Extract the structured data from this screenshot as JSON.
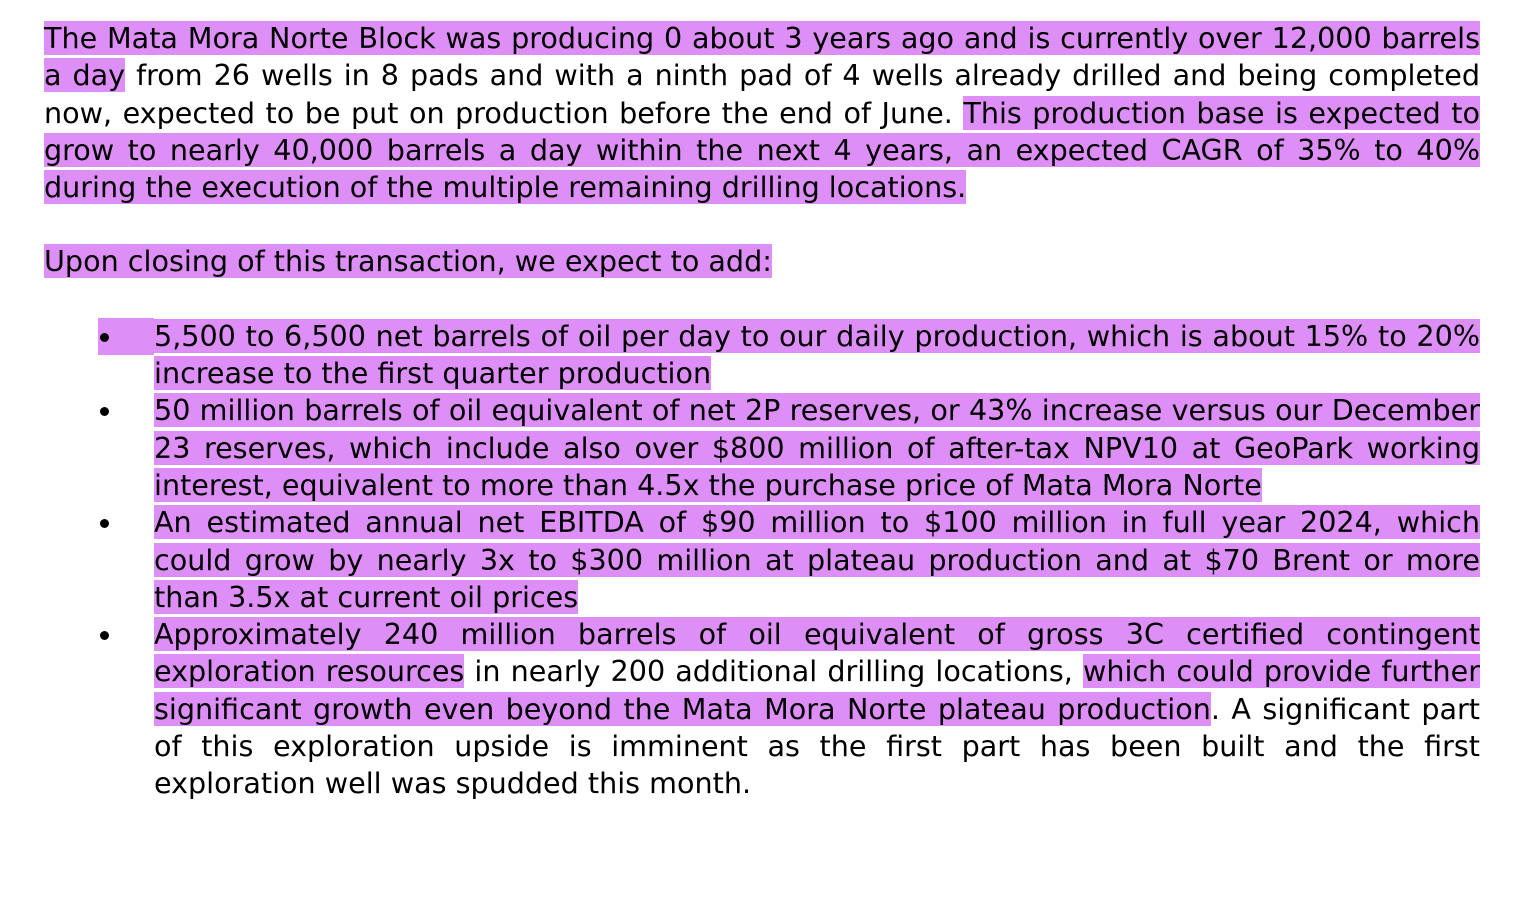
{
  "colors": {
    "highlight": "#de8ff7",
    "text": "#000000",
    "background": "#ffffff"
  },
  "paragraph1": {
    "seg1": "The Mata Mora Norte Block was producing 0 about 3 years ago and is currently over 12,000 barrels a day",
    "seg2": " from 26 wells in 8 pads and with a ninth pad of 4 wells already drilled and being completed now, expected to be put on production before the end of June. ",
    "seg3": "This production base is expected to grow to nearly 40,000 barrels a day within the next 4 years, an expected CAGR of 35% to 40% during the execution of the multiple remaining drilling locations."
  },
  "paragraph2": {
    "text": "Upon closing of this transaction, we expect to add:"
  },
  "bullets": {
    "item1": {
      "text": "5,500 to 6,500 net barrels of oil per day to our daily production, which is about 15% to 20% increase to the first quarter production"
    },
    "item2": {
      "text": "50 million barrels of oil equivalent of net 2P reserves, or 43% increase versus our December 23 reserves, which include also over $800 million of after-tax NPV10 at GeoPark working interest, equivalent to more than 4.5x the purchase price of Mata Mora Norte"
    },
    "item3": {
      "text": "An estimated annual net EBITDA of $90 million to $100 million in full year 2024, which could grow by nearly 3x to $300 million at plateau production and at $70 Brent or more than 3.5x at current oil prices"
    },
    "item4": {
      "seg1": "Approximately 240 million barrels of oil equivalent of gross 3C certified contingent exploration resources",
      "seg2": " in nearly 200 additional drilling locations, ",
      "seg3": "which could provide further significant growth even beyond the Mata Mora Norte plateau production",
      "seg4": ". A significant part of this exploration upside is imminent as the first part has been built and the first exploration well was spudded this month."
    }
  }
}
